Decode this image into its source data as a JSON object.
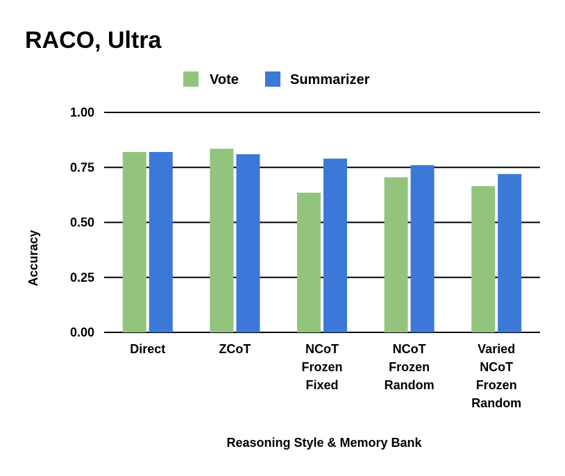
{
  "chart_data": {
    "type": "bar",
    "title": "RACO, Ultra",
    "xlabel": "Reasoning Style & Memory Bank",
    "ylabel": "Accuracy",
    "ylim": [
      0,
      1
    ],
    "yticks": [
      "0.00",
      "0.25",
      "0.50",
      "0.75",
      "1.00"
    ],
    "grid": true,
    "legend_position": "top",
    "categories": [
      [
        "Direct"
      ],
      [
        "ZCoT"
      ],
      [
        "NCoT",
        "Frozen",
        "Fixed"
      ],
      [
        "NCoT",
        "Frozen",
        "Random"
      ],
      [
        "Varied",
        "NCoT",
        "Frozen",
        "Random"
      ]
    ],
    "series": [
      {
        "name": "Vote",
        "color": "#93c47d",
        "values": [
          0.82,
          0.835,
          0.635,
          0.705,
          0.665
        ]
      },
      {
        "name": "Summarizer",
        "color": "#3c78d8",
        "values": [
          0.82,
          0.81,
          0.79,
          0.76,
          0.72
        ]
      }
    ]
  }
}
